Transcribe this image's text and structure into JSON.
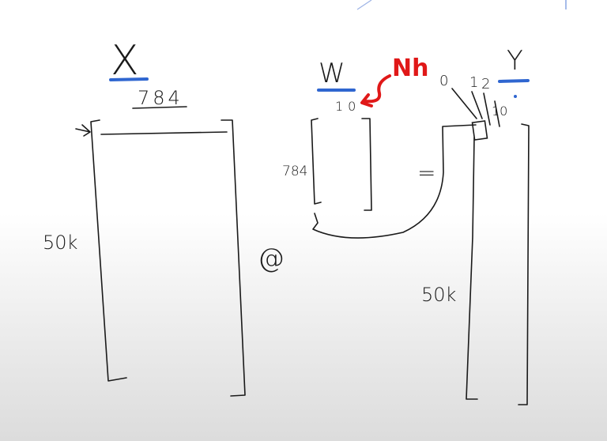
{
  "matrix_x": {
    "name": "X",
    "cols": "784",
    "rows": "50k"
  },
  "operator": "@",
  "matrix_w": {
    "name": "W",
    "cols": "10",
    "rows": "784",
    "note": "Nh"
  },
  "equals": "=",
  "matrix_y": {
    "name": "Y",
    "col_labels": [
      "0",
      "1",
      "2",
      "10"
    ],
    "rows": "50k"
  },
  "colors": {
    "ink": "#1a1a1a",
    "blue_underline": "#2f66d0",
    "red_annotation": "#e01818"
  }
}
